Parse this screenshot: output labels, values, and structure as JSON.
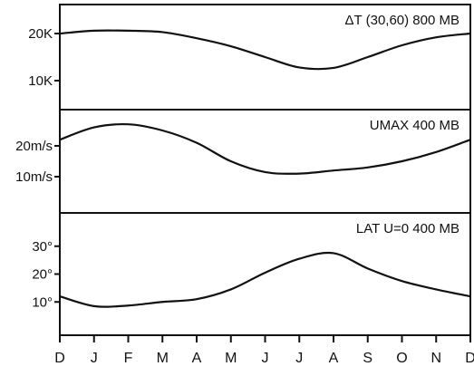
{
  "chart_data": [
    {
      "type": "line",
      "title": "ΔT (30,60) 800 MB",
      "x": [
        "D",
        "J",
        "F",
        "M",
        "A",
        "M",
        "J",
        "J",
        "A",
        "S",
        "O",
        "N",
        "D"
      ],
      "yticks": [
        "20K",
        "10K"
      ],
      "ytick_values": [
        20,
        10
      ],
      "ylim": [
        5,
        25
      ],
      "series": [
        {
          "values": [
            20,
            20.6,
            20.6,
            20.3,
            19,
            17.3,
            15,
            12.8,
            12.7,
            15,
            17.5,
            19.2,
            20
          ]
        }
      ]
    },
    {
      "type": "line",
      "title": "UMAX  400 MB",
      "x": [
        "D",
        "J",
        "F",
        "M",
        "A",
        "M",
        "J",
        "J",
        "A",
        "S",
        "O",
        "N",
        "D"
      ],
      "yticks": [
        "20m/s",
        "10m/s"
      ],
      "ytick_values": [
        20,
        10
      ],
      "ylim": [
        0,
        30
      ],
      "series": [
        {
          "values": [
            22,
            26,
            27,
            25,
            21,
            15,
            11.5,
            11,
            12,
            13,
            15,
            18,
            22
          ]
        }
      ]
    },
    {
      "type": "line",
      "title": "LAT U=0  400 MB",
      "x": [
        "D",
        "J",
        "F",
        "M",
        "A",
        "M",
        "J",
        "J",
        "A",
        "S",
        "O",
        "N",
        "D"
      ],
      "yticks": [
        "30°",
        "20°",
        "10°"
      ],
      "ytick_values": [
        30,
        20,
        10
      ],
      "ylim": [
        0,
        40
      ],
      "series": [
        {
          "values": [
            12,
            8.5,
            8.7,
            10,
            11,
            14.5,
            20.5,
            25.5,
            27.5,
            22,
            17.5,
            14.5,
            12
          ]
        }
      ]
    }
  ]
}
